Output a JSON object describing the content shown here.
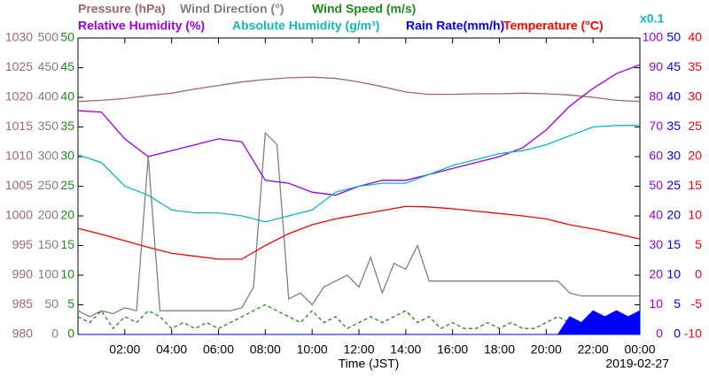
{
  "chart_data": {
    "type": "line",
    "x_label": "Time (JST)",
    "date": "2019-02-27",
    "annotation": "x0.1",
    "xlim": [
      0,
      24
    ],
    "xticks": [
      {
        "value": 2,
        "label": "02:00"
      },
      {
        "value": 4,
        "label": "04:00"
      },
      {
        "value": 6,
        "label": "06:00"
      },
      {
        "value": 8,
        "label": "08:00"
      },
      {
        "value": 10,
        "label": "10:00"
      },
      {
        "value": 12,
        "label": "12:00"
      },
      {
        "value": 14,
        "label": "14:00"
      },
      {
        "value": 16,
        "label": "16:00"
      },
      {
        "value": 18,
        "label": "18:00"
      },
      {
        "value": 20,
        "label": "20:00"
      },
      {
        "value": 22,
        "label": "22:00"
      },
      {
        "value": 24,
        "label": "00:00"
      }
    ],
    "x": [
      0,
      1,
      2,
      3,
      4,
      5,
      6,
      7,
      8,
      9,
      10,
      11,
      12,
      13,
      14,
      15,
      16,
      17,
      18,
      19,
      20,
      21,
      22,
      23,
      24
    ],
    "axes": [
      {
        "side": "left",
        "color": "#a06868",
        "ylim": [
          980,
          1030
        ],
        "yticks": [
          980,
          985,
          990,
          995,
          1000,
          1005,
          1010,
          1015,
          1020,
          1025,
          1030
        ]
      },
      {
        "side": "left",
        "color": "#808080",
        "ylim": [
          0,
          500
        ],
        "yticks": [
          0,
          50,
          100,
          150,
          200,
          250,
          300,
          350,
          400,
          450,
          500
        ]
      },
      {
        "side": "left",
        "color": "#1a8c1a",
        "ylim": [
          0,
          50
        ],
        "yticks": [
          0,
          5,
          10,
          15,
          20,
          25,
          30,
          35,
          40,
          45,
          50
        ]
      },
      {
        "side": "right",
        "color": "#9a00dd",
        "ylim": [
          0,
          100
        ],
        "yticks": [
          0,
          10,
          20,
          30,
          40,
          50,
          60,
          70,
          80,
          90,
          100
        ]
      },
      {
        "side": "right",
        "color": "#0000ff",
        "ylim": [
          0,
          50
        ],
        "yticks": [
          0,
          5,
          10,
          15,
          20,
          25,
          30,
          35,
          40,
          45,
          50
        ]
      },
      {
        "side": "right",
        "color": "#ff0000",
        "ylim": [
          -10,
          40
        ],
        "yticks": [
          -10,
          -5,
          0,
          5,
          10,
          15,
          20,
          25,
          30,
          35,
          40
        ]
      }
    ],
    "series": [
      {
        "name": "Pressure (hPa)",
        "color": "#a06868",
        "axis": 0,
        "values": [
          1019.3,
          1019.5,
          1019.8,
          1020.3,
          1020.7,
          1021.4,
          1022.0,
          1022.6,
          1023.0,
          1023.3,
          1023.4,
          1023.2,
          1022.6,
          1021.8,
          1020.9,
          1020.5,
          1020.5,
          1020.6,
          1020.6,
          1020.7,
          1020.6,
          1020.4,
          1020.0,
          1019.5,
          1019.3
        ]
      },
      {
        "name": "Wind Direction (°)",
        "color": "#808080",
        "axis": 1,
        "x": [
          0,
          0.5,
          1,
          1.5,
          2,
          2.5,
          3,
          3.5,
          4,
          4.5,
          5,
          5.5,
          6,
          6.5,
          7,
          7.5,
          8,
          8.5,
          9,
          9.5,
          10,
          10.5,
          11,
          11.5,
          12,
          12.5,
          13,
          13.5,
          14,
          14.5,
          15,
          15.5,
          16,
          16.5,
          17,
          17.5,
          18,
          18.5,
          19,
          19.5,
          20,
          20.5,
          21,
          21.5,
          22,
          22.5,
          23,
          23.5,
          24
        ],
        "values": [
          40,
          30,
          40,
          35,
          45,
          40,
          300,
          40,
          40,
          40,
          40,
          40,
          40,
          40,
          45,
          80,
          340,
          320,
          60,
          70,
          50,
          80,
          90,
          100,
          80,
          130,
          70,
          120,
          110,
          150,
          90,
          90,
          90,
          90,
          90,
          90,
          90,
          90,
          90,
          90,
          90,
          90,
          70,
          65,
          65,
          65,
          65,
          65,
          65
        ]
      },
      {
        "name": "Wind Speed (m/s)",
        "color": "#1a8c1a",
        "axis": 2,
        "style": "dashed",
        "x": [
          0,
          0.5,
          1,
          1.5,
          2,
          2.5,
          3,
          3.5,
          4,
          4.5,
          5,
          5.5,
          6,
          6.5,
          7,
          7.5,
          8,
          8.5,
          9,
          9.5,
          10,
          10.5,
          11,
          11.5,
          12,
          12.5,
          13,
          13.5,
          14,
          14.5,
          15,
          15.5,
          16,
          16.5,
          17,
          17.5,
          18,
          18.5,
          19,
          19.5,
          20,
          20.5,
          21,
          21.5,
          22,
          22.5,
          23,
          23.5,
          24
        ],
        "values": [
          3,
          2,
          4,
          1,
          3,
          2,
          4,
          3,
          1,
          2,
          1,
          2,
          1,
          2,
          3,
          4,
          5,
          4,
          3,
          2,
          4,
          2,
          3,
          1,
          2,
          3,
          2,
          3,
          4,
          2,
          3,
          1,
          2,
          1,
          1,
          2,
          1,
          2,
          1,
          1,
          2,
          3,
          2,
          1,
          2,
          3,
          2,
          1,
          2
        ]
      },
      {
        "name": "Relative Humidity (%)",
        "color": "#9a00dd",
        "axis": 3,
        "values": [
          75.5,
          75,
          66,
          60,
          62,
          64,
          66,
          65,
          52,
          51,
          48,
          47,
          50,
          52,
          52,
          54,
          56,
          58,
          60,
          63,
          69,
          77,
          83,
          88,
          91
        ]
      },
      {
        "name": "Absolute Humidity (g/m³)",
        "color": "#10b8b8",
        "axis": 3,
        "values": [
          60.6,
          58,
          50,
          47,
          42,
          41,
          41,
          40,
          38,
          40,
          42,
          48,
          50,
          51,
          51,
          54,
          57,
          59,
          61,
          62,
          64,
          67,
          70,
          70.5,
          70.5
        ]
      },
      {
        "name": "Rain Rate(mm/h)",
        "color": "#0000ff",
        "axis": 4,
        "style": "area",
        "x": [
          0,
          0.5,
          1,
          1.5,
          2,
          2.5,
          3,
          3.5,
          4,
          4.5,
          5,
          5.5,
          6,
          6.5,
          7,
          7.5,
          8,
          8.5,
          9,
          9.5,
          10,
          10.5,
          11,
          11.5,
          12,
          12.5,
          13,
          13.5,
          14,
          14.5,
          15,
          15.5,
          16,
          16.5,
          17,
          17.5,
          18,
          18.5,
          19,
          19.5,
          20,
          20.5,
          21,
          21.5,
          22,
          22.5,
          23,
          23.5,
          24
        ],
        "values": [
          0,
          0,
          0,
          0,
          0,
          0,
          0,
          0,
          0,
          0,
          0,
          0,
          0,
          0,
          0,
          0,
          0,
          0,
          0,
          0,
          0,
          0,
          0,
          0,
          0,
          0,
          0,
          0,
          0,
          0,
          0,
          0,
          0,
          0,
          0,
          0,
          0,
          0,
          0,
          0,
          0,
          0,
          3,
          2,
          4,
          3,
          4,
          3,
          4
        ]
      },
      {
        "name": "Temperature (°C)",
        "color": "#ff0000",
        "axis": 5,
        "values": [
          7.9,
          6.9,
          5.8,
          4.7,
          3.7,
          3.2,
          2.7,
          2.7,
          5.0,
          7.0,
          8.5,
          9.5,
          10.2,
          10.9,
          11.6,
          11.5,
          11.2,
          10.8,
          10.4,
          10.0,
          9.5,
          8.5,
          7.8,
          7.0,
          6.1
        ]
      }
    ]
  }
}
